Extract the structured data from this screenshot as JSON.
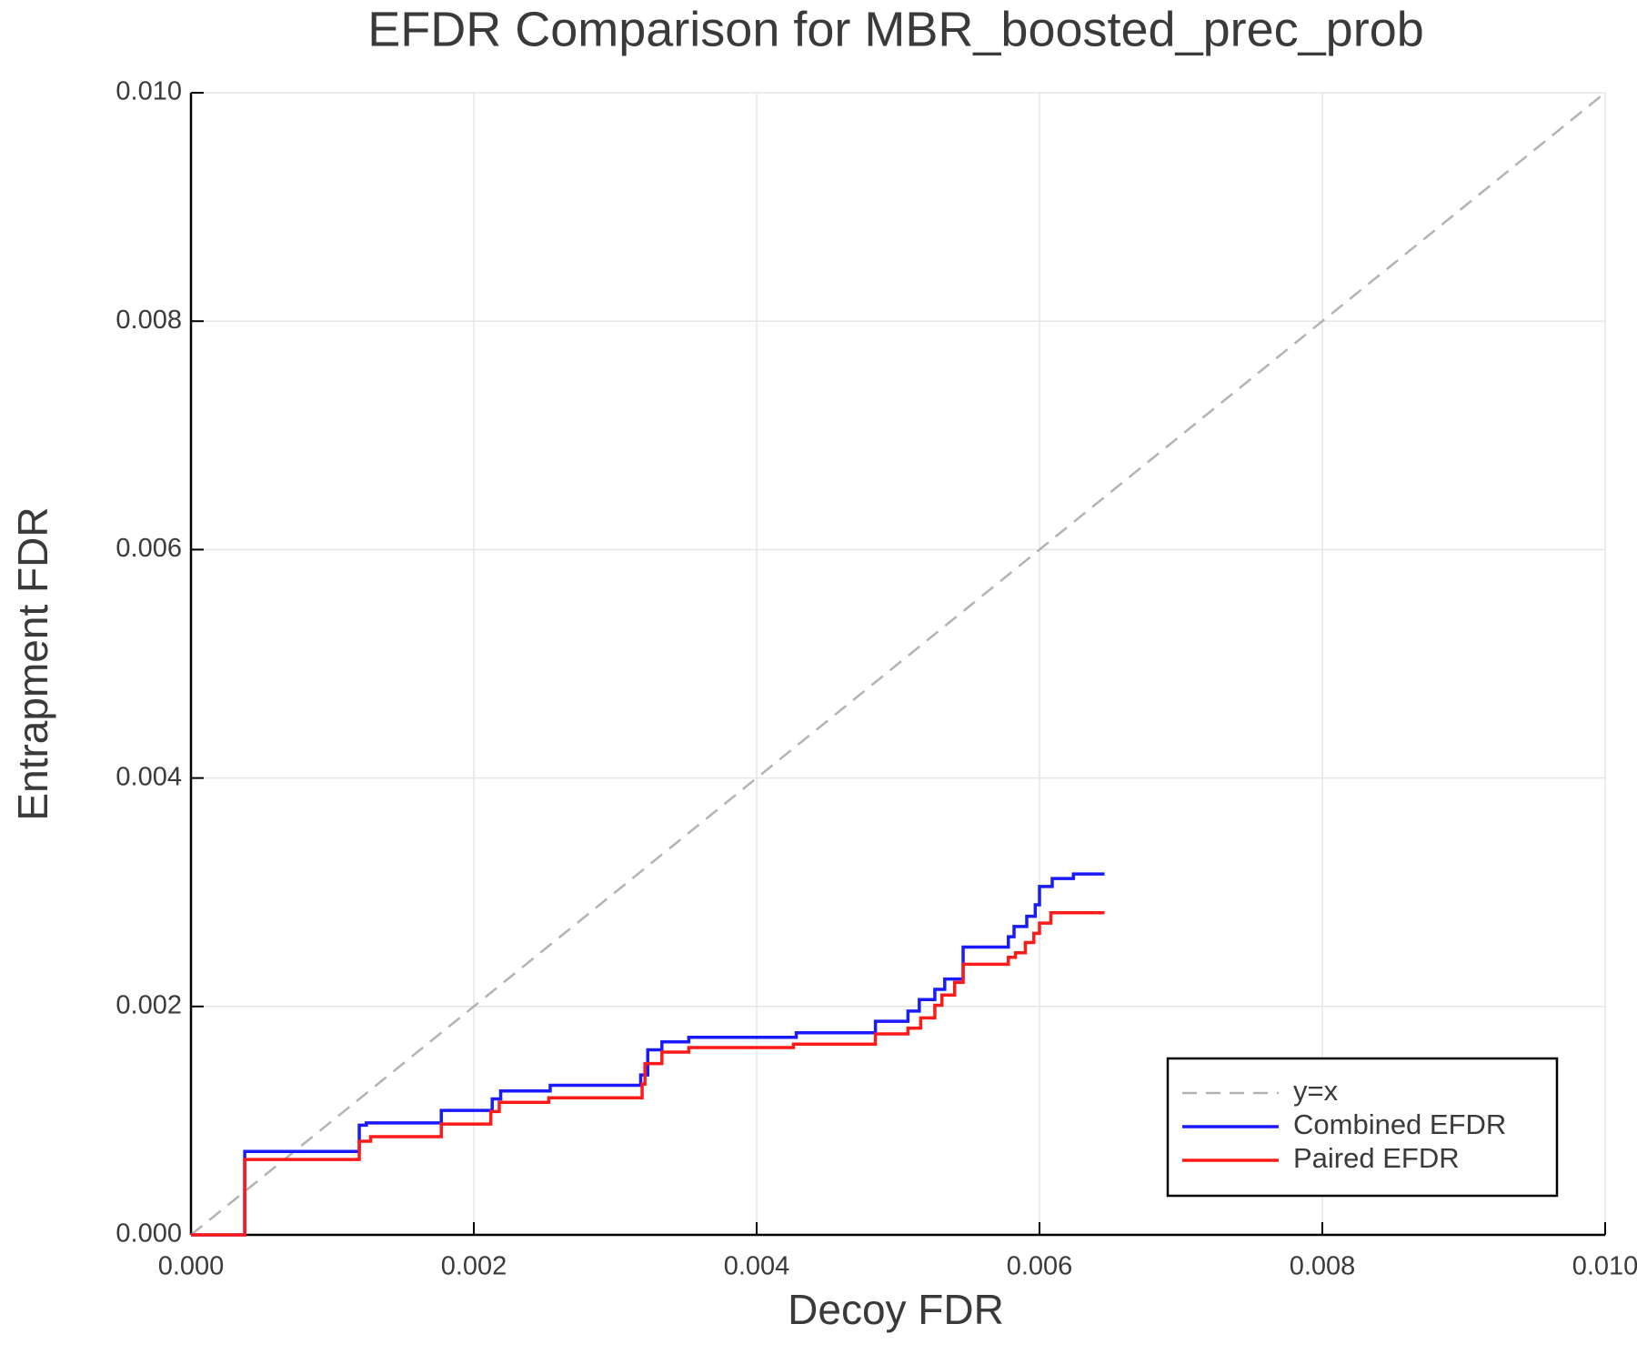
{
  "chart_data": {
    "type": "line",
    "title": "EFDR Comparison for MBR_boosted_prec_prob",
    "xlabel": "Decoy FDR",
    "ylabel": "Entrapment FDR",
    "xlim": [
      0,
      0.01
    ],
    "ylim": [
      0,
      0.01
    ],
    "xticks": [
      {
        "value": 0,
        "label": "0.000"
      },
      {
        "value": 0.002,
        "label": "0.002"
      },
      {
        "value": 0.004,
        "label": "0.004"
      },
      {
        "value": 0.006,
        "label": "0.006"
      },
      {
        "value": 0.008,
        "label": "0.008"
      },
      {
        "value": 0.01,
        "label": "0.010"
      }
    ],
    "yticks": [
      {
        "value": 0,
        "label": "0.000"
      },
      {
        "value": 0.002,
        "label": "0.002"
      },
      {
        "value": 0.004,
        "label": "0.004"
      },
      {
        "value": 0.006,
        "label": "0.006"
      },
      {
        "value": 0.008,
        "label": "0.008"
      },
      {
        "value": 0.01,
        "label": "0.010"
      }
    ],
    "grid": true,
    "legend": "lower right",
    "series": [
      {
        "name": "y=x",
        "color": "#b3b3b3",
        "dashed": true,
        "x": [
          0,
          0.01
        ],
        "values": [
          0,
          0.01
        ]
      },
      {
        "name": "Combined EFDR",
        "color": "#1a1aff",
        "dashed": false,
        "x": [
          0,
          0.00038,
          0.00038,
          0.00119,
          0.00119,
          0.00124,
          0.00124,
          0.00177,
          0.00177,
          0.00213,
          0.00213,
          0.00219,
          0.00219,
          0.00254,
          0.00254,
          0.00318,
          0.00318,
          0.00323,
          0.00323,
          0.00333,
          0.00333,
          0.00352,
          0.00352,
          0.00428,
          0.00428,
          0.00484,
          0.00484,
          0.00507,
          0.00507,
          0.00515,
          0.00515,
          0.00526,
          0.00526,
          0.00533,
          0.00533,
          0.00546,
          0.00546,
          0.00578,
          0.00578,
          0.00582,
          0.00582,
          0.00591,
          0.00591,
          0.00597,
          0.00597,
          0.006,
          0.006,
          0.00609,
          0.00609,
          0.00624,
          0.00624,
          0.00646
        ],
        "values": [
          0,
          0,
          0.00073,
          0.00073,
          0.00096,
          0.00096,
          0.00098,
          0.00098,
          0.00109,
          0.00109,
          0.00119,
          0.00119,
          0.00126,
          0.00126,
          0.00131,
          0.00131,
          0.0014,
          0.0014,
          0.00162,
          0.00162,
          0.00169,
          0.00169,
          0.00173,
          0.00173,
          0.00177,
          0.00177,
          0.00187,
          0.00187,
          0.00196,
          0.00196,
          0.00206,
          0.00206,
          0.00215,
          0.00215,
          0.00224,
          0.00224,
          0.00252,
          0.00252,
          0.00261,
          0.00261,
          0.0027,
          0.0027,
          0.00279,
          0.00279,
          0.00289,
          0.00289,
          0.00305,
          0.00305,
          0.00312,
          0.00312,
          0.00316,
          0.00316
        ]
      },
      {
        "name": "Paired EFDR",
        "color": "#ff1a1a",
        "dashed": false,
        "x": [
          0,
          0.00038,
          0.00038,
          0.00119,
          0.00119,
          0.00127,
          0.00127,
          0.00177,
          0.00177,
          0.00212,
          0.00212,
          0.00218,
          0.00218,
          0.00253,
          0.00253,
          0.00319,
          0.00319,
          0.00321,
          0.00321,
          0.00333,
          0.00333,
          0.00352,
          0.00352,
          0.00426,
          0.00426,
          0.00484,
          0.00484,
          0.00507,
          0.00507,
          0.00516,
          0.00516,
          0.00526,
          0.00526,
          0.00531,
          0.00531,
          0.0054,
          0.0054,
          0.00546,
          0.00546,
          0.00578,
          0.00578,
          0.00583,
          0.00583,
          0.0059,
          0.0059,
          0.00596,
          0.00596,
          0.006,
          0.006,
          0.00608,
          0.00608,
          0.00646
        ],
        "values": [
          0,
          0,
          0.00066,
          0.00066,
          0.00082,
          0.00082,
          0.00086,
          0.00086,
          0.00097,
          0.00097,
          0.00108,
          0.00108,
          0.00116,
          0.00116,
          0.0012,
          0.0012,
          0.00132,
          0.00132,
          0.0015,
          0.0015,
          0.0016,
          0.0016,
          0.00164,
          0.00164,
          0.00167,
          0.00167,
          0.00176,
          0.00176,
          0.00181,
          0.00181,
          0.0019,
          0.0019,
          0.00201,
          0.00201,
          0.0021,
          0.0021,
          0.00221,
          0.00221,
          0.00237,
          0.00237,
          0.00243,
          0.00243,
          0.00247,
          0.00247,
          0.00256,
          0.00256,
          0.00264,
          0.00264,
          0.00273,
          0.00273,
          0.00282,
          0.00282
        ]
      }
    ]
  }
}
